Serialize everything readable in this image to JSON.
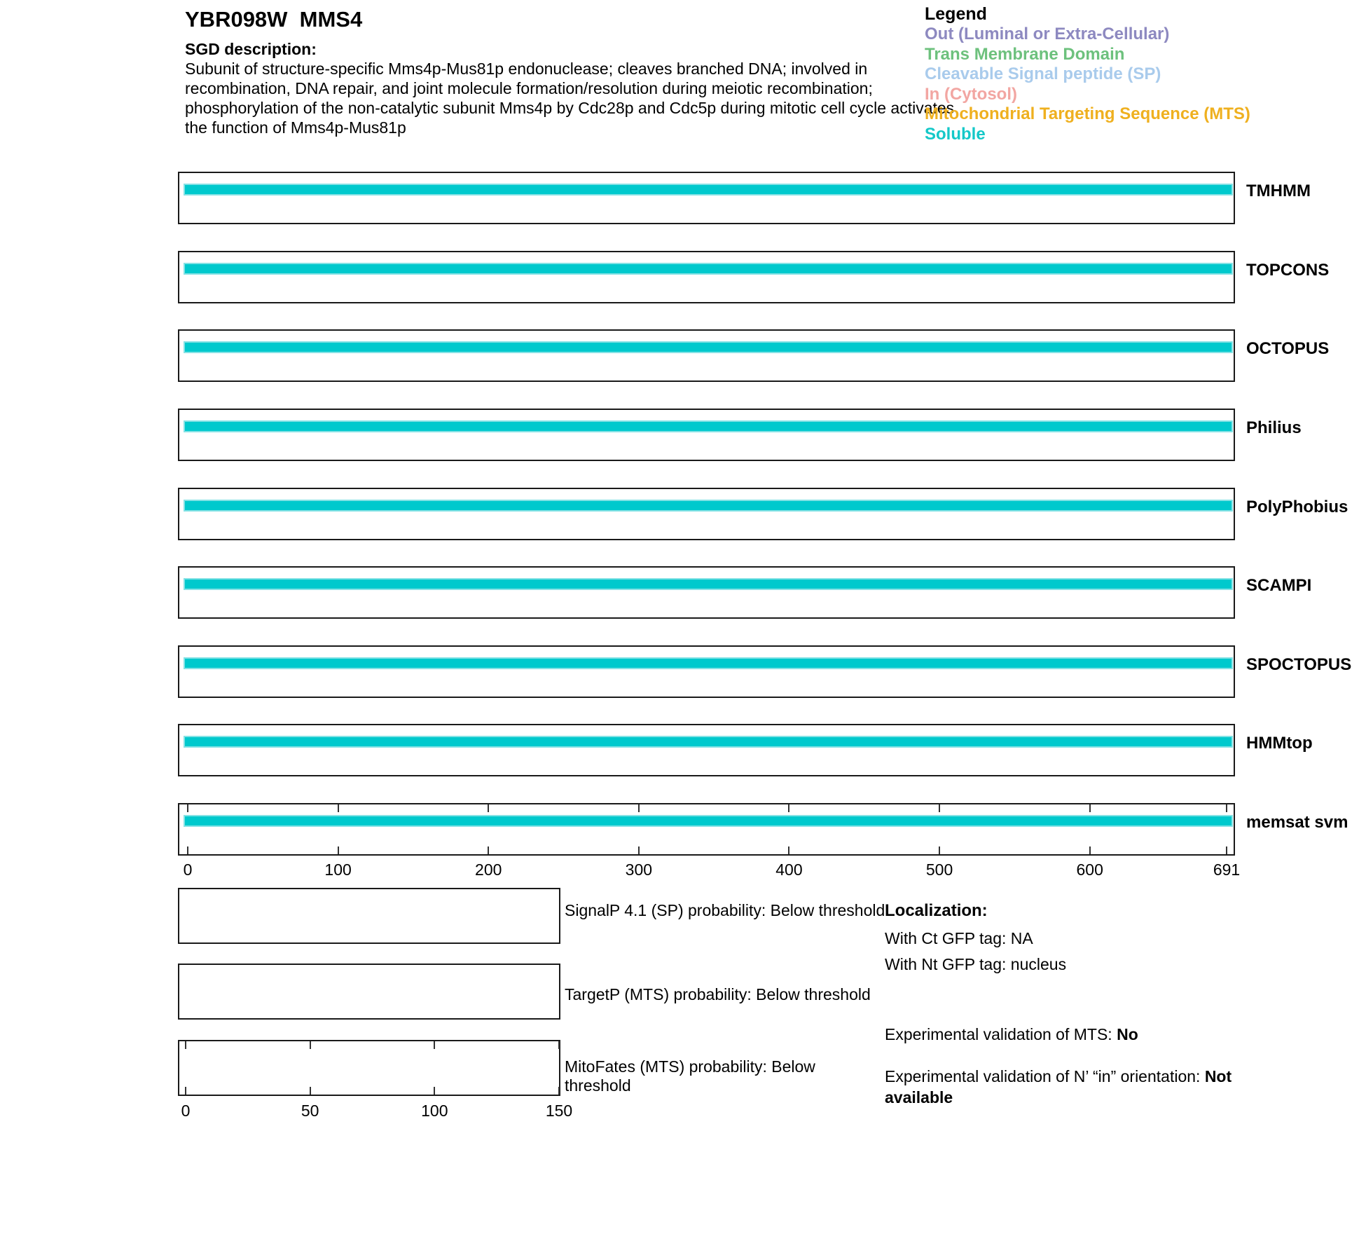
{
  "header": {
    "title": "YBR098W  MMS4",
    "sgd_label": "SGD description:",
    "description_lines": [
      "Subunit of structure-specific Mms4p-Mus81p endonuclease; cleaves branched DNA; involved in",
      "recombination, DNA repair, and joint molecule formation/resolution during meiotic recombination;",
      "phosphorylation of the non-catalytic subunit Mms4p by Cdc28p and Cdc5p during mitotic cell cycle activates",
      "the function of Mms4p-Mus81p"
    ]
  },
  "legend": {
    "title": "Legend",
    "items": [
      {
        "label": "Out (Luminal or Extra-Cellular)",
        "color": "#8D89C0"
      },
      {
        "label": "Trans Membrane Domain",
        "color": "#6DC17D"
      },
      {
        "label": "Cleavable Signal peptide (SP)",
        "color": "#A9CBEC"
      },
      {
        "label": "In (Cytosol)",
        "color": "#F2A6A2"
      },
      {
        "label": "Mitochondrial Targeting Sequence (MTS)",
        "color": "#EFB01F"
      },
      {
        "label": "Soluble",
        "color": "#14C8C8"
      }
    ]
  },
  "tracks": {
    "bar_color": "#00C9CD",
    "bar_edge_color": "#85E2E5",
    "items": [
      {
        "label": "TMHMM"
      },
      {
        "label": "TOPCONS"
      },
      {
        "label": "OCTOPUS"
      },
      {
        "label": "Philius"
      },
      {
        "label": "PolyPhobius"
      },
      {
        "label": "SCAMPI"
      },
      {
        "label": "SPOCTOPUS"
      },
      {
        "label": "HMMtop"
      },
      {
        "label": "memsat svm"
      }
    ],
    "axis_labels": [
      "0",
      "100",
      "200",
      "300",
      "400",
      "500",
      "600",
      "691"
    ]
  },
  "small_plots": {
    "signalp": {
      "label": "SignalP 4.1 (SP) probability: Below threshold"
    },
    "targetp": {
      "label": "TargetP (MTS) probability: Below threshold"
    },
    "mitofates": {
      "label_line1": "MitoFates (MTS) probability: Below",
      "label_line2": "threshold",
      "axis_labels": [
        "0",
        "50",
        "100",
        "150"
      ]
    }
  },
  "localization": {
    "title": "Localization:",
    "ct_gfp": "With Ct GFP tag: NA",
    "nt_gfp": "With Nt GFP tag: nucleus",
    "mts_label": "Experimental validation of MTS: ",
    "mts_value": "No",
    "orientation_label": "Experimental validation of N’ “in” orientation: ",
    "orientation_value": "Not available"
  },
  "chart_data": [
    {
      "type": "bar",
      "orientation": "horizontal",
      "title": "YBR098W MMS4",
      "categories": [
        "TMHMM",
        "TOPCONS",
        "OCTOPUS",
        "Philius",
        "PolyPhobius",
        "SCAMPI",
        "SPOCTOPUS",
        "HMMtop",
        "memsat svm"
      ],
      "series": [
        {
          "name": "Soluble",
          "segments_per_category": [
            {
              "start": 0,
              "end": 691
            },
            {
              "start": 0,
              "end": 691
            },
            {
              "start": 0,
              "end": 691
            },
            {
              "start": 0,
              "end": 691
            },
            {
              "start": 0,
              "end": 691
            },
            {
              "start": 0,
              "end": 691
            },
            {
              "start": 0,
              "end": 691
            },
            {
              "start": 0,
              "end": 691
            },
            {
              "start": 0,
              "end": 691
            }
          ]
        }
      ],
      "xlim": [
        0,
        691
      ],
      "xticks": [
        0,
        100,
        200,
        300,
        400,
        500,
        600,
        691
      ],
      "grid": false,
      "legend_position": "top-right"
    },
    {
      "type": "line",
      "title": "SignalP 4.1 (SP) probability",
      "values": [],
      "note": "Below threshold (empty plot)"
    },
    {
      "type": "line",
      "title": "TargetP (MTS) probability",
      "values": [],
      "note": "Below threshold (empty plot)"
    },
    {
      "type": "line",
      "title": "MitoFates (MTS) probability",
      "values": [],
      "note": "Below threshold (empty plot)",
      "xlim": [
        0,
        150
      ],
      "xticks": [
        0,
        50,
        100,
        150
      ]
    }
  ]
}
